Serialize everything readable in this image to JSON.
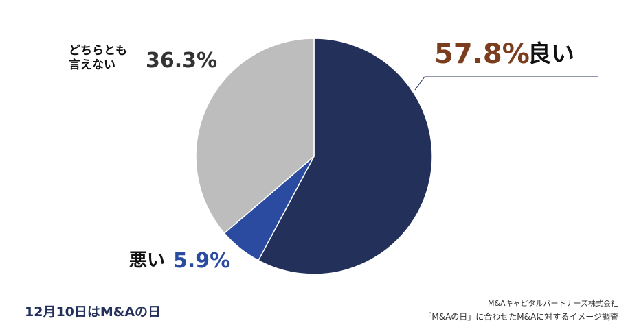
{
  "chart_data": {
    "type": "pie",
    "categories": [
      "良い",
      "悪い",
      "どちらとも\n言えない"
    ],
    "values": [
      57.8,
      5.9,
      36.3
    ],
    "value_labels": [
      "57.8%",
      "5.9%",
      "36.3%"
    ],
    "colors": [
      "#22305a",
      "#2b4ba0",
      "#bdbdbd"
    ],
    "value_label_colors": [
      "#7a3e1f",
      "#2b4ba0",
      "#333333"
    ]
  },
  "footer": {
    "logo": "12月10日はM&Aの日",
    "company": "M&Aキャピタルパートナーズ株式会社",
    "survey": "「M&Aの日」に合わせたM&Aに対するイメージ調査"
  }
}
